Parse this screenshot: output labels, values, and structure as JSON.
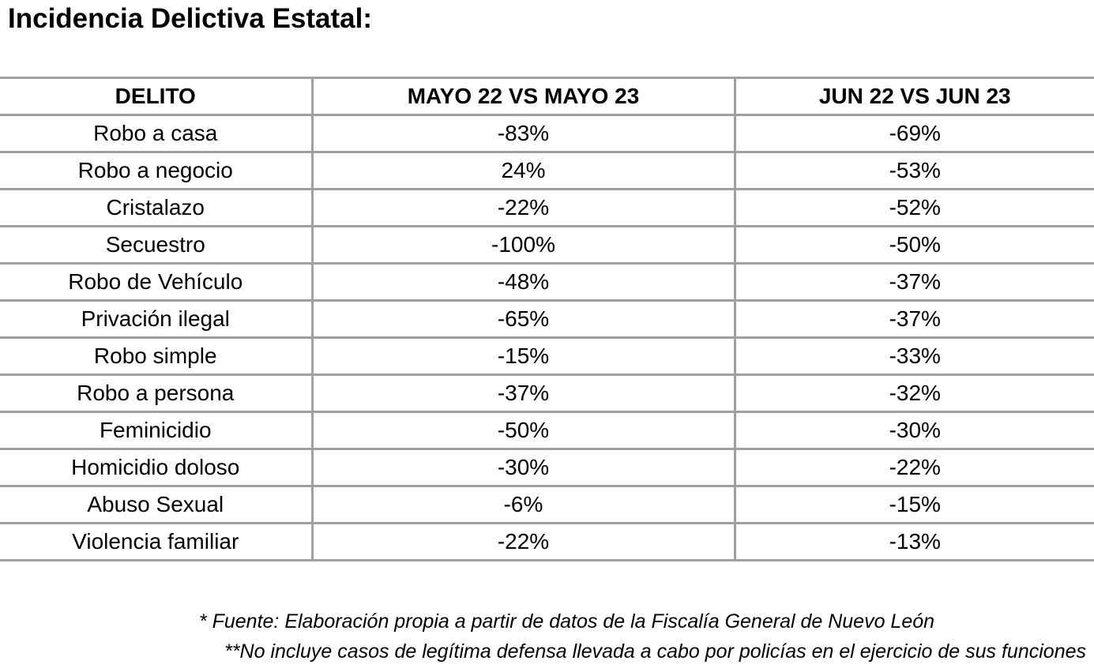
{
  "title": "Incidencia Delictiva Estatal:",
  "table": {
    "headers": [
      "DELITO",
      "MAYO 22 VS MAYO 23",
      "JUN 22 VS JUN 23"
    ],
    "rows": [
      [
        "Robo a casa",
        "-83%",
        "-69%"
      ],
      [
        "Robo a negocio",
        "24%",
        "-53%"
      ],
      [
        "Cristalazo",
        "-22%",
        "-52%"
      ],
      [
        "Secuestro",
        "-100%",
        "-50%"
      ],
      [
        "Robo de Vehículo",
        "-48%",
        "-37%"
      ],
      [
        "Privación ilegal",
        "-65%",
        "-37%"
      ],
      [
        "Robo simple",
        "-15%",
        "-33%"
      ],
      [
        "Robo a persona",
        "-37%",
        "-32%"
      ],
      [
        "Feminicidio",
        "-50%",
        "-30%"
      ],
      [
        "Homicidio doloso",
        "-30%",
        "-22%"
      ],
      [
        "Abuso Sexual",
        "-6%",
        "-15%"
      ],
      [
        "Violencia familiar",
        "-22%",
        "-13%"
      ]
    ]
  },
  "notes": [
    "* Fuente: Elaboración propia a partir de datos de la Fiscalía General de Nuevo León",
    "**No incluye casos de legítima defensa llevada a cabo por policías en el ejercicio de sus funciones"
  ]
}
